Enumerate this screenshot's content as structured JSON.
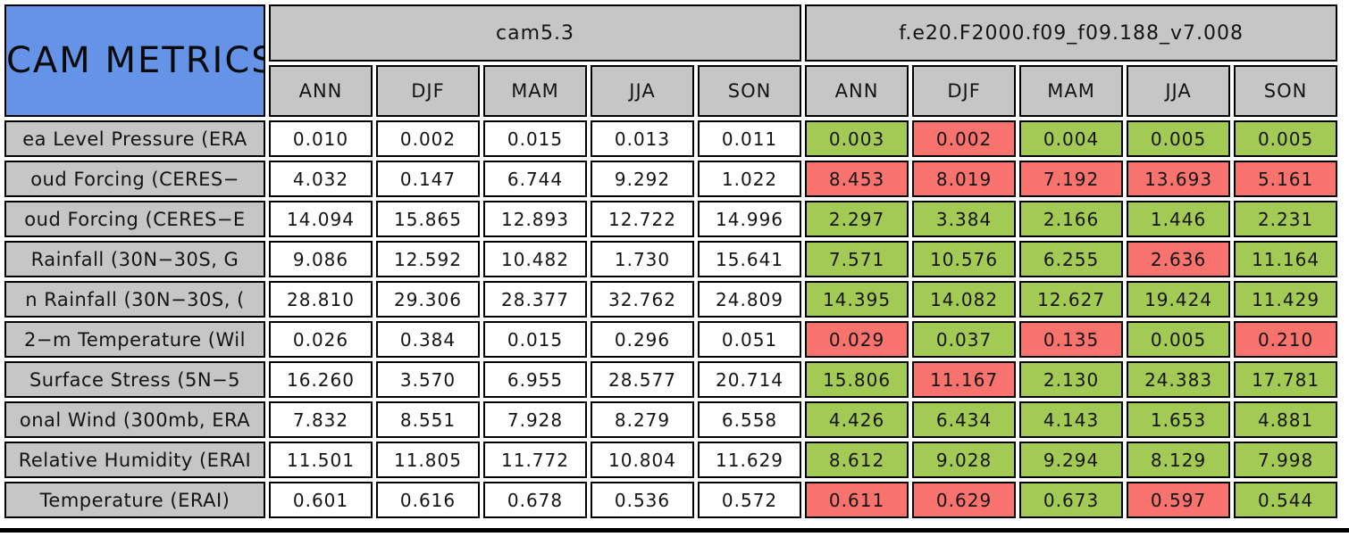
{
  "title": "CAM METRICS",
  "colors": {
    "title_bg_blue": "#6493e8",
    "header_grey": "#c6c6c6",
    "better_green": "#a3ca55",
    "worse_red": "#f8736e",
    "cell_border": "#000000",
    "value_bg": "#ffffff"
  },
  "chart_data": {
    "type": "table",
    "title": "CAM METRICS",
    "column_groups": [
      "cam5.3",
      "f.e20.F2000.f09_f09.188_v7.008"
    ],
    "seasons": [
      "ANN",
      "DJF",
      "MAM",
      "JJA",
      "SON"
    ],
    "status_legend": {
      "better": "green",
      "worse": "red"
    },
    "rows": [
      {
        "label": "ea Level Pressure (ERA",
        "cam53": [
          "0.010",
          "0.002",
          "0.015",
          "0.013",
          "0.011"
        ],
        "exp": [
          "0.003",
          "0.002",
          "0.004",
          "0.005",
          "0.005"
        ],
        "exp_status": [
          "better",
          "worse",
          "better",
          "better",
          "better"
        ]
      },
      {
        "label": "oud Forcing (CERES−",
        "cam53": [
          "4.032",
          "0.147",
          "6.744",
          "9.292",
          "1.022"
        ],
        "exp": [
          "8.453",
          "8.019",
          "7.192",
          "13.693",
          "5.161"
        ],
        "exp_status": [
          "worse",
          "worse",
          "worse",
          "worse",
          "worse"
        ]
      },
      {
        "label": "oud Forcing (CERES−E",
        "cam53": [
          "14.094",
          "15.865",
          "12.893",
          "12.722",
          "14.996"
        ],
        "exp": [
          "2.297",
          "3.384",
          "2.166",
          "1.446",
          "2.231"
        ],
        "exp_status": [
          "better",
          "better",
          "better",
          "better",
          "better"
        ]
      },
      {
        "label": "Rainfall (30N−30S, G",
        "cam53": [
          "9.086",
          "12.592",
          "10.482",
          "1.730",
          "15.641"
        ],
        "exp": [
          "7.571",
          "10.576",
          "6.255",
          "2.636",
          "11.164"
        ],
        "exp_status": [
          "better",
          "better",
          "better",
          "worse",
          "better"
        ]
      },
      {
        "label": "n Rainfall (30N−30S, (",
        "cam53": [
          "28.810",
          "29.306",
          "28.377",
          "32.762",
          "24.809"
        ],
        "exp": [
          "14.395",
          "14.082",
          "12.627",
          "19.424",
          "11.429"
        ],
        "exp_status": [
          "better",
          "better",
          "better",
          "better",
          "better"
        ]
      },
      {
        "label": "2−m Temperature (Wil",
        "cam53": [
          "0.026",
          "0.384",
          "0.015",
          "0.296",
          "0.051"
        ],
        "exp": [
          "0.029",
          "0.037",
          "0.135",
          "0.005",
          "0.210"
        ],
        "exp_status": [
          "worse",
          "better",
          "worse",
          "better",
          "worse"
        ]
      },
      {
        "label": "Surface Stress (5N−5",
        "cam53": [
          "16.260",
          "3.570",
          "6.955",
          "28.577",
          "20.714"
        ],
        "exp": [
          "15.806",
          "11.167",
          "2.130",
          "24.383",
          "17.781"
        ],
        "exp_status": [
          "better",
          "worse",
          "better",
          "better",
          "better"
        ]
      },
      {
        "label": "onal Wind (300mb, ERA",
        "cam53": [
          "7.832",
          "8.551",
          "7.928",
          "8.279",
          "6.558"
        ],
        "exp": [
          "4.426",
          "6.434",
          "4.143",
          "1.653",
          "4.881"
        ],
        "exp_status": [
          "better",
          "better",
          "better",
          "better",
          "better"
        ]
      },
      {
        "label": "Relative Humidity (ERAI",
        "cam53": [
          "11.501",
          "11.805",
          "11.772",
          "10.804",
          "11.629"
        ],
        "exp": [
          "8.612",
          "9.028",
          "9.294",
          "8.129",
          "7.998"
        ],
        "exp_status": [
          "better",
          "better",
          "better",
          "better",
          "better"
        ]
      },
      {
        "label": "Temperature (ERAI)",
        "cam53": [
          "0.601",
          "0.616",
          "0.678",
          "0.536",
          "0.572"
        ],
        "exp": [
          "0.611",
          "0.629",
          "0.673",
          "0.597",
          "0.544"
        ],
        "exp_status": [
          "worse",
          "worse",
          "better",
          "worse",
          "better"
        ]
      }
    ]
  }
}
